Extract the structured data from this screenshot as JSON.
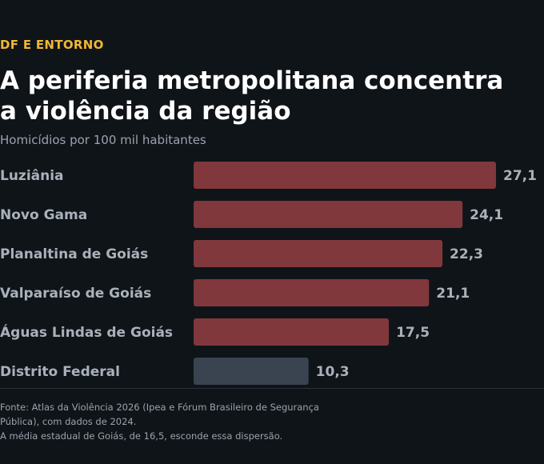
{
  "kicker": "DF E ENTORNO",
  "title": "A periferia metropolitana concentra a violência da região",
  "subtitle": "Homicídios por 100 mil habitantes",
  "source": "Fonte: Atlas da Violência 2026 (Ipea e Fórum Brasileiro de Segurança Pública), com dados de 2024.",
  "note": "A média estadual de Goiás, de 16,5, esconde essa dispersão.",
  "colors": {
    "highlight": "#80383c",
    "reference": "#3a4350",
    "background": "#0f1419",
    "kicker": "#f2b632"
  },
  "chart_data": {
    "type": "bar",
    "orientation": "horizontal",
    "title": "A periferia metropolitana concentra a violência da região",
    "subtitle": "Homicídios por 100 mil habitantes",
    "categories": [
      "Luziânia",
      "Novo Gama",
      "Planaltina de Goiás",
      "Valparaíso de Goiás",
      "Águas Lindas de Goiás",
      "Distrito Federal"
    ],
    "values": [
      27.1,
      24.1,
      22.3,
      21.1,
      17.5,
      10.3
    ],
    "value_labels": [
      "27,1",
      "24,1",
      "22,3",
      "21,1",
      "17,5",
      "10,3"
    ],
    "highlight": [
      true,
      true,
      true,
      true,
      true,
      false
    ],
    "xlim": [
      0,
      27.1
    ],
    "grid": false,
    "axes_visible": false
  }
}
